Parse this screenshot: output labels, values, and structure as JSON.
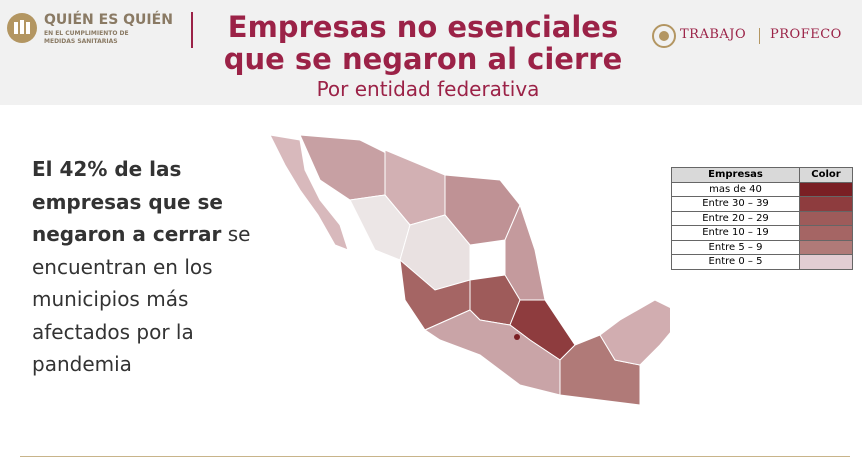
{
  "header": {
    "logo_title": "QUIÉN ES QUIÉN",
    "logo_subtitle_1": "EN EL CUMPLIMIENTO DE",
    "logo_subtitle_2": "MEDIDAS SANITARIAS",
    "title_line_1": "Empresas no esenciales",
    "title_line_2": "que se negaron al cierre",
    "subtitle": "Por entidad federativa",
    "partner_1": "TRABAJO",
    "partner_2": "PROFECO"
  },
  "text": {
    "bold": "El 42% de las empresas que se negaron a cerrar",
    "normal": "se encuentran en los municipios más afectados por la pandemia"
  },
  "legend": {
    "headers": [
      "Empresas",
      "Color"
    ],
    "rows": [
      {
        "label": "mas de 40",
        "color": "#7a1f24"
      },
      {
        "label": "Entre 30 – 39",
        "color": "#8e3c3e"
      },
      {
        "label": "Entre 20 – 29",
        "color": "#9e5b5a"
      },
      {
        "label": "Entre 10 – 19",
        "color": "#a56564"
      },
      {
        "label": "Entre 5 – 9",
        "color": "#b07a78"
      },
      {
        "label": "Entre 0 – 5",
        "color": "#e2cdd3"
      }
    ]
  }
}
